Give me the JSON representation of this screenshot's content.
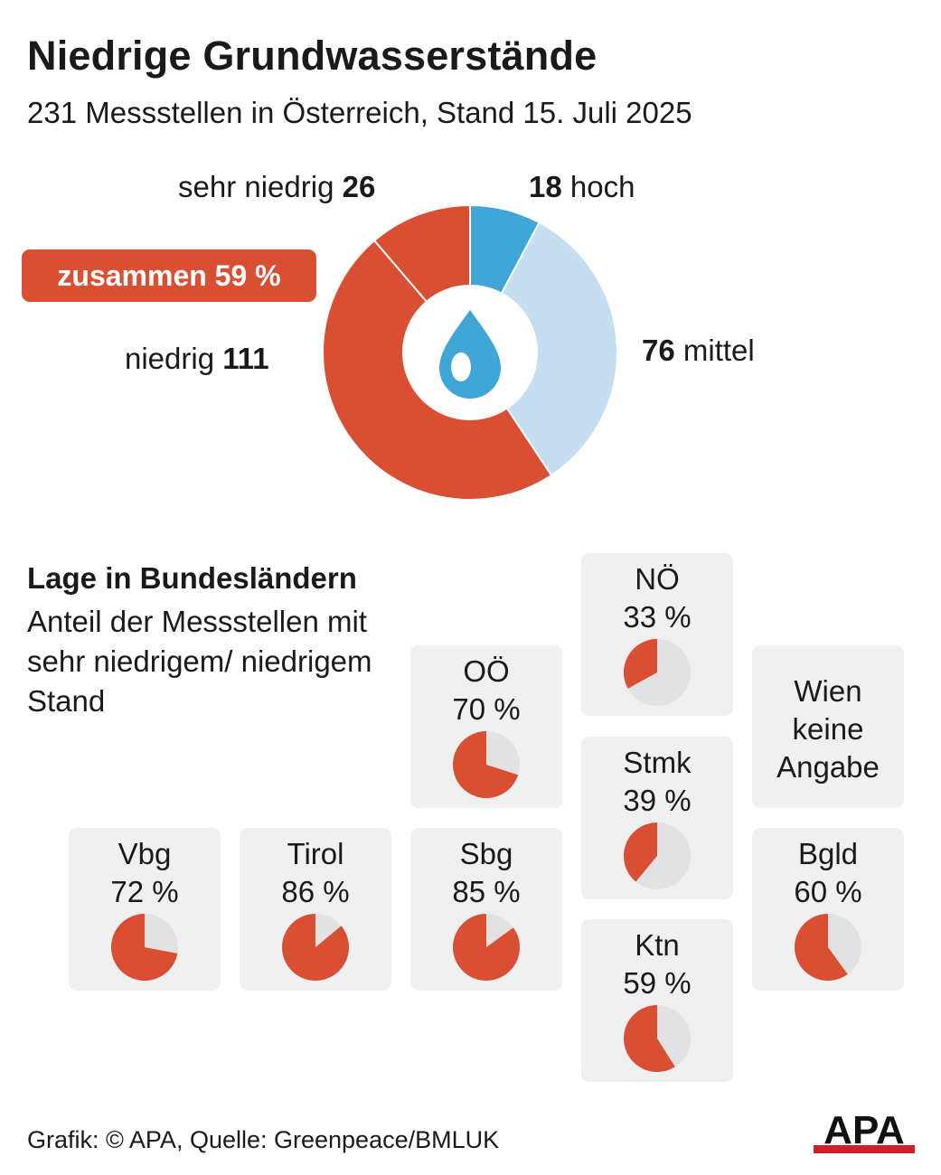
{
  "title": "Niedrige Grundwasserstände",
  "subtitle": "231 Messstellen in Österreich, Stand 15. Juli 2025",
  "colors": {
    "sehr_niedrig": "#d94f33",
    "niedrig": "#d94f33",
    "mittel": "#c5def0",
    "hoch": "#3fa6d6",
    "pie_low": "#d94f33",
    "pie_rest": "#e2e2e2",
    "tile_bg": "#f0f0f0"
  },
  "donut": {
    "combined_label": "zusammen 59 %",
    "center_icon": "water-drop-icon",
    "labels": {
      "sehr_niedrig": {
        "text": "sehr niedrig ",
        "value": "26"
      },
      "hoch": {
        "value": "18",
        "text": " hoch"
      },
      "mittel": {
        "value": "76",
        "text": " mittel"
      },
      "niedrig": {
        "text": "niedrig ",
        "value": "111"
      }
    }
  },
  "section": {
    "title": "Lage in Bundesländern",
    "description": "Anteil der Messstellen mit sehr niedrigem/ niedrigem Stand"
  },
  "states": [
    {
      "name": "NÖ",
      "pct_label": "33 %",
      "value": 33
    },
    {
      "name": "OÖ",
      "pct_label": "70 %",
      "value": 70
    },
    {
      "name": "Wien",
      "pct_label": "keine Angabe",
      "value": null
    },
    {
      "name": "Stmk",
      "pct_label": "39 %",
      "value": 39
    },
    {
      "name": "Vbg",
      "pct_label": "72 %",
      "value": 72
    },
    {
      "name": "Tirol",
      "pct_label": "86 %",
      "value": 86
    },
    {
      "name": "Sbg",
      "pct_label": "85 %",
      "value": 85
    },
    {
      "name": "Bgld",
      "pct_label": "60 %",
      "value": 60
    },
    {
      "name": "Ktn",
      "pct_label": "59 %",
      "value": 59
    }
  ],
  "footer": "Grafik: © APA, Quelle: Greenpeace/BMLUK",
  "logo_text": "APA",
  "chart_data": [
    {
      "type": "pie",
      "title": "Niedrige Grundwasserstände",
      "subtitle": "231 Messstellen in Österreich, Stand 15. Juli 2025",
      "categories": [
        "hoch",
        "mittel",
        "niedrig",
        "sehr niedrig"
      ],
      "values": [
        18,
        76,
        111,
        26
      ],
      "total": 231,
      "annotation": "zusammen 59 %"
    },
    {
      "type": "pie",
      "title": "Lage in Bundesländern",
      "subtitle": "Anteil der Messstellen mit sehr niedrigem/ niedrigem Stand",
      "categories": [
        "NÖ",
        "OÖ",
        "Wien",
        "Stmk",
        "Vbg",
        "Tirol",
        "Sbg",
        "Bgld",
        "Ktn"
      ],
      "values": [
        33,
        70,
        null,
        39,
        72,
        86,
        85,
        60,
        59
      ],
      "unit": "%"
    }
  ]
}
